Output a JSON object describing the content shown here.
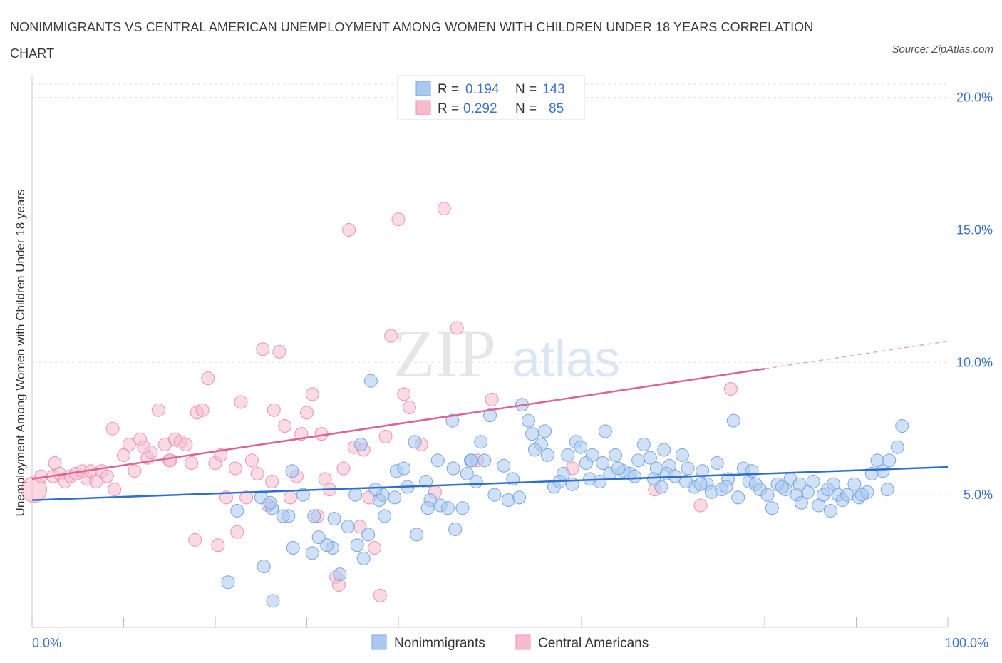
{
  "title": "NONIMMIGRANTS VS CENTRAL AMERICAN UNEMPLOYMENT AMONG WOMEN WITH CHILDREN UNDER 18 YEARS CORRELATION CHART",
  "source": "Source: ZipAtlas.com",
  "watermark": {
    "zip": "ZIP",
    "atlas": "atlas"
  },
  "colors": {
    "blue_fill": "#aac8f0",
    "blue_stroke": "#7aa6e0",
    "blue_line": "#2e6fcc",
    "pink_fill": "#f6bccd",
    "pink_stroke": "#ec93ae",
    "pink_line": "#e0628e",
    "tick_text": "#3b72c4"
  },
  "legend": {
    "rows": [
      {
        "r_label": "R =",
        "r_value": "0.194",
        "n_label": "N =",
        "n_value": "143"
      },
      {
        "r_label": "R =",
        "r_value": "0.292",
        "n_label": "N =",
        "n_value": "85"
      }
    ]
  },
  "chart_data": {
    "type": "scatter",
    "title": "NONIMMIGRANTS VS CENTRAL AMERICAN UNEMPLOYMENT AMONG WOMEN WITH CHILDREN UNDER 18 YEARS CORRELATION CHART",
    "xlabel": "",
    "ylabel": "Unemployment Among Women with Children Under 18 years",
    "xlim": [
      0,
      100
    ],
    "ylim": [
      0,
      20.5
    ],
    "x_tick_labels": [
      "0.0%",
      "100.0%"
    ],
    "y_ticks": [
      5,
      10,
      15,
      20
    ],
    "y_tick_labels": [
      "5.0%",
      "10.0%",
      "15.0%",
      "20.0%"
    ],
    "grid": true,
    "legend_position": "bottom",
    "series": [
      {
        "name": "Nonimmigrants",
        "r": 0.194,
        "n": 143,
        "trend": {
          "x": [
            0,
            100
          ],
          "y": [
            4.8,
            6.05
          ],
          "dashed_from": null
        },
        "points": [
          [
            21.4,
            1.7
          ],
          [
            25.3,
            2.3
          ],
          [
            26.3,
            1.0
          ],
          [
            28.5,
            3.0
          ],
          [
            30.6,
            2.8
          ],
          [
            31.3,
            3.4
          ],
          [
            32.8,
            3.0
          ],
          [
            33.6,
            2.0
          ],
          [
            34.5,
            3.8
          ],
          [
            35.5,
            3.1
          ],
          [
            36.2,
            2.6
          ],
          [
            28.0,
            4.2
          ],
          [
            30.8,
            4.2
          ],
          [
            26.2,
            4.5
          ],
          [
            25.0,
            4.9
          ],
          [
            28.4,
            5.9
          ],
          [
            35.3,
            5.0
          ],
          [
            37.9,
            4.8
          ],
          [
            38.3,
            5.0
          ],
          [
            38.5,
            4.2
          ],
          [
            39.8,
            5.9
          ],
          [
            40.6,
            6.0
          ],
          [
            42.0,
            3.5
          ],
          [
            43.5,
            4.8
          ],
          [
            44.6,
            4.6
          ],
          [
            45.4,
            4.5
          ],
          [
            46.2,
            3.7
          ],
          [
            47.0,
            4.5
          ],
          [
            43.0,
            5.5
          ],
          [
            41.8,
            7.0
          ],
          [
            44.3,
            6.3
          ],
          [
            46.0,
            6.0
          ],
          [
            47.9,
            6.3
          ],
          [
            48.5,
            5.5
          ],
          [
            49.4,
            6.3
          ],
          [
            50.5,
            5.0
          ],
          [
            52.0,
            4.8
          ],
          [
            52.5,
            5.6
          ],
          [
            53.5,
            8.4
          ],
          [
            54.2,
            7.8
          ],
          [
            54.6,
            7.3
          ],
          [
            55.6,
            6.9
          ],
          [
            56.3,
            6.5
          ],
          [
            57.0,
            5.3
          ],
          [
            58.0,
            5.8
          ],
          [
            58.5,
            6.5
          ],
          [
            59.4,
            7.0
          ],
          [
            59.9,
            6.8
          ],
          [
            60.5,
            6.2
          ],
          [
            61.2,
            6.5
          ],
          [
            62.0,
            5.5
          ],
          [
            62.6,
            7.4
          ],
          [
            63.1,
            5.8
          ],
          [
            63.7,
            6.5
          ],
          [
            64.6,
            5.9
          ],
          [
            65.3,
            5.8
          ],
          [
            66.2,
            6.3
          ],
          [
            66.8,
            6.9
          ],
          [
            67.5,
            6.4
          ],
          [
            68.2,
            6.0
          ],
          [
            68.7,
            5.3
          ],
          [
            69.0,
            6.7
          ],
          [
            69.6,
            6.1
          ],
          [
            70.2,
            5.7
          ],
          [
            71.0,
            6.5
          ],
          [
            71.6,
            6.0
          ],
          [
            72.3,
            5.3
          ],
          [
            73.2,
            5.9
          ],
          [
            73.7,
            5.4
          ],
          [
            74.2,
            5.1
          ],
          [
            74.8,
            6.2
          ],
          [
            75.3,
            5.2
          ],
          [
            76.0,
            5.6
          ],
          [
            76.6,
            7.8
          ],
          [
            77.1,
            4.9
          ],
          [
            77.7,
            6.0
          ],
          [
            78.3,
            5.5
          ],
          [
            79.0,
            5.4
          ],
          [
            79.5,
            5.2
          ],
          [
            80.3,
            5.0
          ],
          [
            80.8,
            4.5
          ],
          [
            81.4,
            5.4
          ],
          [
            82.3,
            5.2
          ],
          [
            82.8,
            5.6
          ],
          [
            83.5,
            5.0
          ],
          [
            84.0,
            4.7
          ],
          [
            84.7,
            5.1
          ],
          [
            85.3,
            5.5
          ],
          [
            85.9,
            4.6
          ],
          [
            86.4,
            5.0
          ],
          [
            86.9,
            5.2
          ],
          [
            87.5,
            5.4
          ],
          [
            88.0,
            5.0
          ],
          [
            88.5,
            4.8
          ],
          [
            89.0,
            5.0
          ],
          [
            89.8,
            5.4
          ],
          [
            90.3,
            4.9
          ],
          [
            91.2,
            5.1
          ],
          [
            91.7,
            5.8
          ],
          [
            92.3,
            6.3
          ],
          [
            92.9,
            5.9
          ],
          [
            93.6,
            6.3
          ],
          [
            94.5,
            6.8
          ],
          [
            95.0,
            7.6
          ],
          [
            93.4,
            5.2
          ],
          [
            90.6,
            5.0
          ],
          [
            87.2,
            4.4
          ],
          [
            83.8,
            5.4
          ],
          [
            81.9,
            5.3
          ],
          [
            78.6,
            5.9
          ],
          [
            75.8,
            5.3
          ],
          [
            73.0,
            5.4
          ],
          [
            71.4,
            5.5
          ],
          [
            69.3,
            5.8
          ],
          [
            67.9,
            5.6
          ],
          [
            65.8,
            5.7
          ],
          [
            64.0,
            6.0
          ],
          [
            62.3,
            6.2
          ],
          [
            60.9,
            5.6
          ],
          [
            59.0,
            5.4
          ],
          [
            57.6,
            5.5
          ],
          [
            56.0,
            7.4
          ],
          [
            54.9,
            6.7
          ],
          [
            53.2,
            4.9
          ],
          [
            51.5,
            6.1
          ],
          [
            49.0,
            7.0
          ],
          [
            47.5,
            5.8
          ],
          [
            45.9,
            7.8
          ],
          [
            43.2,
            4.5
          ],
          [
            41.0,
            5.3
          ],
          [
            39.6,
            4.9
          ],
          [
            37.5,
            5.2
          ],
          [
            36.7,
            3.5
          ],
          [
            35.9,
            6.9
          ],
          [
            32.2,
            3.1
          ],
          [
            29.6,
            5.0
          ],
          [
            27.4,
            4.2
          ],
          [
            22.4,
            4.4
          ],
          [
            26.0,
            4.7
          ],
          [
            33.0,
            4.1
          ],
          [
            37.0,
            9.3
          ],
          [
            48.0,
            6.3
          ],
          [
            50.0,
            8.0
          ]
        ]
      },
      {
        "name": "Central Americans",
        "r": 0.292,
        "n": 85,
        "trend": {
          "x": [
            0,
            100
          ],
          "y": [
            5.6,
            10.8
          ],
          "dashed_from": 80
        },
        "points": [
          [
            0.2,
            5.2
          ],
          [
            1.0,
            5.7
          ],
          [
            2.3,
            5.7
          ],
          [
            2.5,
            6.2
          ],
          [
            3.0,
            5.8
          ],
          [
            3.6,
            5.5
          ],
          [
            4.2,
            5.7
          ],
          [
            4.8,
            5.8
          ],
          [
            5.5,
            5.9
          ],
          [
            6.0,
            5.6
          ],
          [
            6.4,
            5.9
          ],
          [
            7.0,
            5.5
          ],
          [
            7.6,
            5.9
          ],
          [
            8.2,
            5.7
          ],
          [
            9.0,
            5.2
          ],
          [
            8.8,
            7.5
          ],
          [
            10.0,
            6.5
          ],
          [
            10.6,
            6.9
          ],
          [
            11.2,
            5.9
          ],
          [
            11.8,
            7.1
          ],
          [
            12.6,
            6.4
          ],
          [
            13.0,
            6.6
          ],
          [
            13.8,
            8.2
          ],
          [
            14.5,
            6.9
          ],
          [
            15.0,
            6.3
          ],
          [
            15.6,
            7.1
          ],
          [
            16.2,
            7.0
          ],
          [
            16.8,
            6.9
          ],
          [
            17.4,
            6.2
          ],
          [
            18.0,
            8.1
          ],
          [
            18.6,
            8.2
          ],
          [
            19.2,
            9.4
          ],
          [
            20.0,
            6.2
          ],
          [
            20.6,
            6.5
          ],
          [
            21.2,
            4.9
          ],
          [
            22.4,
            3.6
          ],
          [
            22.8,
            8.5
          ],
          [
            23.4,
            4.9
          ],
          [
            24.0,
            6.3
          ],
          [
            24.6,
            5.8
          ],
          [
            25.2,
            10.5
          ],
          [
            25.8,
            4.6
          ],
          [
            26.4,
            8.2
          ],
          [
            27.0,
            10.4
          ],
          [
            27.6,
            7.6
          ],
          [
            28.2,
            4.9
          ],
          [
            28.9,
            5.7
          ],
          [
            29.4,
            7.3
          ],
          [
            30.0,
            8.1
          ],
          [
            30.6,
            8.8
          ],
          [
            31.2,
            4.2
          ],
          [
            31.6,
            7.3
          ],
          [
            32.0,
            5.6
          ],
          [
            32.5,
            5.2
          ],
          [
            33.2,
            1.9
          ],
          [
            33.5,
            1.6
          ],
          [
            34.0,
            6.0
          ],
          [
            34.6,
            15.0
          ],
          [
            35.2,
            6.8
          ],
          [
            35.8,
            3.8
          ],
          [
            36.2,
            6.7
          ],
          [
            36.8,
            4.9
          ],
          [
            37.4,
            3.0
          ],
          [
            38.0,
            1.2
          ],
          [
            38.6,
            7.2
          ],
          [
            39.2,
            11.0
          ],
          [
            40.0,
            15.4
          ],
          [
            40.6,
            8.8
          ],
          [
            41.2,
            8.3
          ],
          [
            42.5,
            6.9
          ],
          [
            44.0,
            5.1
          ],
          [
            45.0,
            15.8
          ],
          [
            46.4,
            11.3
          ],
          [
            48.6,
            6.3
          ],
          [
            50.2,
            8.6
          ],
          [
            59.0,
            6.0
          ],
          [
            68.0,
            5.2
          ],
          [
            73.0,
            4.6
          ],
          [
            76.3,
            9.0
          ],
          [
            17.8,
            3.3
          ],
          [
            20.3,
            3.1
          ],
          [
            22.2,
            6.0
          ],
          [
            26.2,
            5.5
          ],
          [
            12.2,
            6.8
          ],
          [
            15.1,
            6.3
          ]
        ]
      }
    ]
  }
}
